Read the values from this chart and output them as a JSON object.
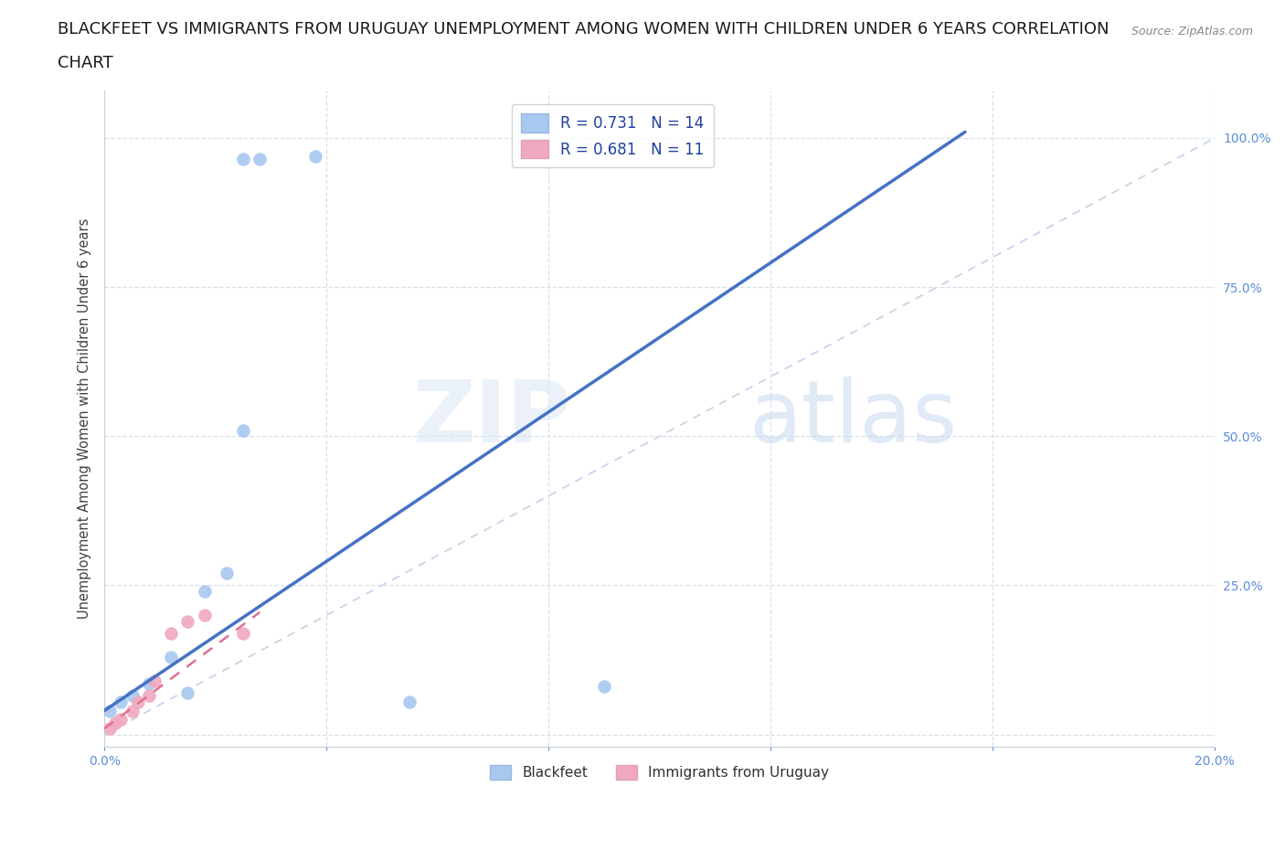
{
  "title_line1": "BLACKFEET VS IMMIGRANTS FROM URUGUAY UNEMPLOYMENT AMONG WOMEN WITH CHILDREN UNDER 6 YEARS CORRELATION",
  "title_line2": "CHART",
  "source": "Source: ZipAtlas.com",
  "xlabel": "",
  "ylabel": "Unemployment Among Women with Children Under 6 years",
  "xlim": [
    0.0,
    0.2
  ],
  "ylim": [
    -0.02,
    1.08
  ],
  "xticks": [
    0.0,
    0.04,
    0.08,
    0.12,
    0.16,
    0.2
  ],
  "xtick_labels": [
    "0.0%",
    "",
    "",
    "",
    "",
    "20.0%"
  ],
  "ytick_labels": [
    "",
    "25.0%",
    "50.0%",
    "75.0%",
    "100.0%"
  ],
  "yticks": [
    0.0,
    0.25,
    0.5,
    0.75,
    1.0
  ],
  "blackfeet_x": [
    0.001,
    0.003,
    0.005,
    0.008,
    0.012,
    0.015,
    0.018,
    0.022,
    0.025,
    0.028,
    0.025,
    0.038,
    0.055,
    0.09
  ],
  "blackfeet_y": [
    0.04,
    0.055,
    0.065,
    0.085,
    0.13,
    0.07,
    0.24,
    0.27,
    0.51,
    0.965,
    0.965,
    0.97,
    0.055,
    0.08
  ],
  "uruguay_x": [
    0.001,
    0.002,
    0.003,
    0.005,
    0.006,
    0.008,
    0.009,
    0.012,
    0.015,
    0.018,
    0.025
  ],
  "uruguay_y": [
    0.01,
    0.02,
    0.025,
    0.04,
    0.055,
    0.065,
    0.09,
    0.17,
    0.19,
    0.2,
    0.17
  ],
  "blackfeet_color": "#a8c8f0",
  "uruguay_color": "#f0a8c0",
  "blackfeet_line_color": "#4472c4",
  "uruguay_line_color": "#e07090",
  "ref_line_color": "#c8d4e8",
  "R_blackfeet": 0.731,
  "N_blackfeet": 14,
  "R_uruguay": 0.681,
  "N_uruguay": 11,
  "legend_label_1": "Blackfeet",
  "legend_label_2": "Immigrants from Uruguay",
  "watermark_zip": "ZIP",
  "watermark_atlas": "atlas",
  "background_color": "#ffffff",
  "grid_color": "#d8e0ec",
  "title_fontsize": 13,
  "axis_label_fontsize": 10.5,
  "tick_fontsize": 10,
  "marker_size": 110,
  "bf_line_x0": 0.0,
  "bf_line_x1": 0.155,
  "bf_line_y0": 0.04,
  "bf_line_y1": 1.01,
  "ur_line_x0": 0.0,
  "ur_line_x1": 0.028,
  "ur_line_y0": 0.01,
  "ur_line_y1": 0.205
}
